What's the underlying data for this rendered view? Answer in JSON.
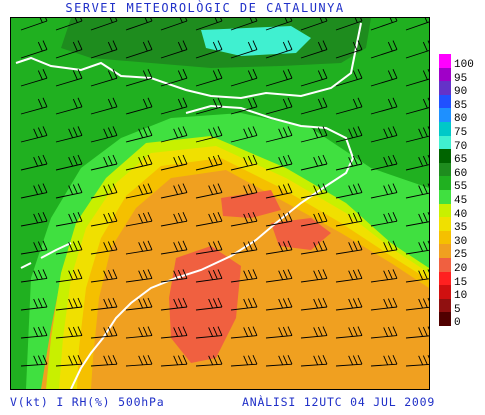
{
  "header": {
    "title": "SERVEI METEOROLÒGIC DE CATALUNYA"
  },
  "footer": {
    "left": "V(kt) I RH(%) 500hPa",
    "right": "ANÀLISI 12UTC 04 JUL 2009"
  },
  "legend": {
    "entries": [
      {
        "label": "100",
        "color": "#ff00ff"
      },
      {
        "label": "95",
        "color": "#a000c8"
      },
      {
        "label": "90",
        "color": "#6432c8"
      },
      {
        "label": "85",
        "color": "#2050ff"
      },
      {
        "label": "80",
        "color": "#1e90ff"
      },
      {
        "label": "75",
        "color": "#00c8c8"
      },
      {
        "label": "70",
        "color": "#40f0d0"
      },
      {
        "label": "65",
        "color": "#006400"
      },
      {
        "label": "60",
        "color": "#1e8c1e"
      },
      {
        "label": "55",
        "color": "#20b020"
      },
      {
        "label": "45",
        "color": "#40e040"
      },
      {
        "label": "40",
        "color": "#c8f000"
      },
      {
        "label": "35",
        "color": "#f0e000"
      },
      {
        "label": "30",
        "color": "#f5c000"
      },
      {
        "label": "25",
        "color": "#f0a020"
      },
      {
        "label": "20",
        "color": "#f06040"
      },
      {
        "label": "15",
        "color": "#ff2020"
      },
      {
        "label": "10",
        "color": "#d01010"
      },
      {
        "label": "5",
        "color": "#901010"
      },
      {
        "label": "0",
        "color": "#500000"
      }
    ]
  },
  "map_colors": {
    "very_moist": "#40f0d0",
    "dark_green": "#1e8c1e",
    "green": "#20b020",
    "light_green": "#40e040",
    "yellow_green": "#c8f000",
    "yellow": "#f0e000",
    "light_orange": "#f5c000",
    "orange": "#f0a020",
    "dry": "#f06040",
    "coastline": "#ffffff",
    "barbs": "#000000"
  }
}
